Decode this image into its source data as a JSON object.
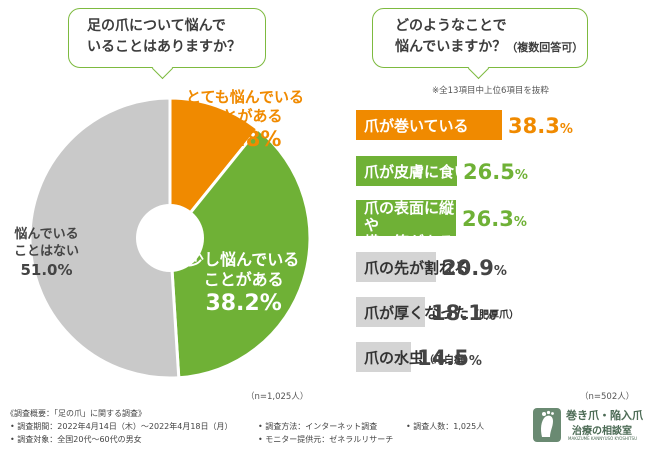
{
  "left_question": {
    "line1": "足の爪について悩んで",
    "line2": "いることはありますか？"
  },
  "right_question": {
    "line1": "どのようなことで",
    "line2": "悩んでいますか？",
    "note": "（複数回答可）"
  },
  "right_subnote": "※全13項目中上位6項目を抜粋",
  "left_n": "（n=1,025人）",
  "right_n": "（n=502人）",
  "chart_data": [
    {
      "type": "pie",
      "title": "足の爪について悩んでいることはありますか？",
      "slices": [
        {
          "label_line1": "とても悩んでいる",
          "label_line2": "ことがある",
          "value": 10.8,
          "value_text": "10.8%",
          "color": "#f08a00"
        },
        {
          "label_line1": "少し悩んでいる",
          "label_line2": "ことがある",
          "value": 38.2,
          "value_text": "38.2%",
          "color": "#6fb136"
        },
        {
          "label_line1": "悩んでいる",
          "label_line2": "ことはない",
          "value": 51.0,
          "value_text": "51.0%",
          "color": "#c9c9c9"
        }
      ]
    },
    {
      "type": "bar",
      "orientation": "horizontal",
      "title": "どのようなことで悩んでいますか？（複数回答可）",
      "categories": [
        "爪が巻いている",
        "爪が皮膚に食い込む",
        "爪の表面に縦や横の筋がある",
        "爪の先が割れる",
        "爪が厚くなった（肥厚爪）",
        "爪の水虫（爪白癬）"
      ],
      "values": [
        38.3,
        26.5,
        26.3,
        20.9,
        18.1,
        14.5
      ],
      "value_texts": [
        "38.3%",
        "26.5%",
        "26.3%",
        "20.9%",
        "18.1%",
        "14.5%"
      ],
      "colors": [
        "#f08a00",
        "#6fb136",
        "#6fb136",
        "#d4d4d4",
        "#d4d4d4",
        "#d4d4d4"
      ],
      "label_parts": [
        {
          "main": "爪が巻いている",
          "sub": ""
        },
        {
          "main": "爪が皮膚に食い込む",
          "sub": ""
        },
        {
          "main": "爪の表面に縦や",
          "main2": "横の筋がある",
          "sub": ""
        },
        {
          "main": "爪の先が割れる",
          "sub": ""
        },
        {
          "main": "爪が厚くなった",
          "sub": "（肥厚爪）"
        },
        {
          "main": "爪の水虫",
          "sub": "（爪白癬）"
        }
      ]
    }
  ],
  "footer": {
    "overview": "《調査概要：「足の爪」に関する調査》",
    "period": "• 調査期間：2022年4月14日（木）～2022年4月18日（月）",
    "target": "• 調査対象：全国20代～60代の男女",
    "method": "• 調査方法：インターネット調査",
    "provider": "• モニター提供元：ゼネラルリサーチ",
    "count": "• 調査人数：1,025人"
  },
  "logo": {
    "line1": "巻き爪・陥入爪",
    "line2": "治療の相談室",
    "line3": "MAKIZUME KANNYUSO KYOSHITSU"
  }
}
